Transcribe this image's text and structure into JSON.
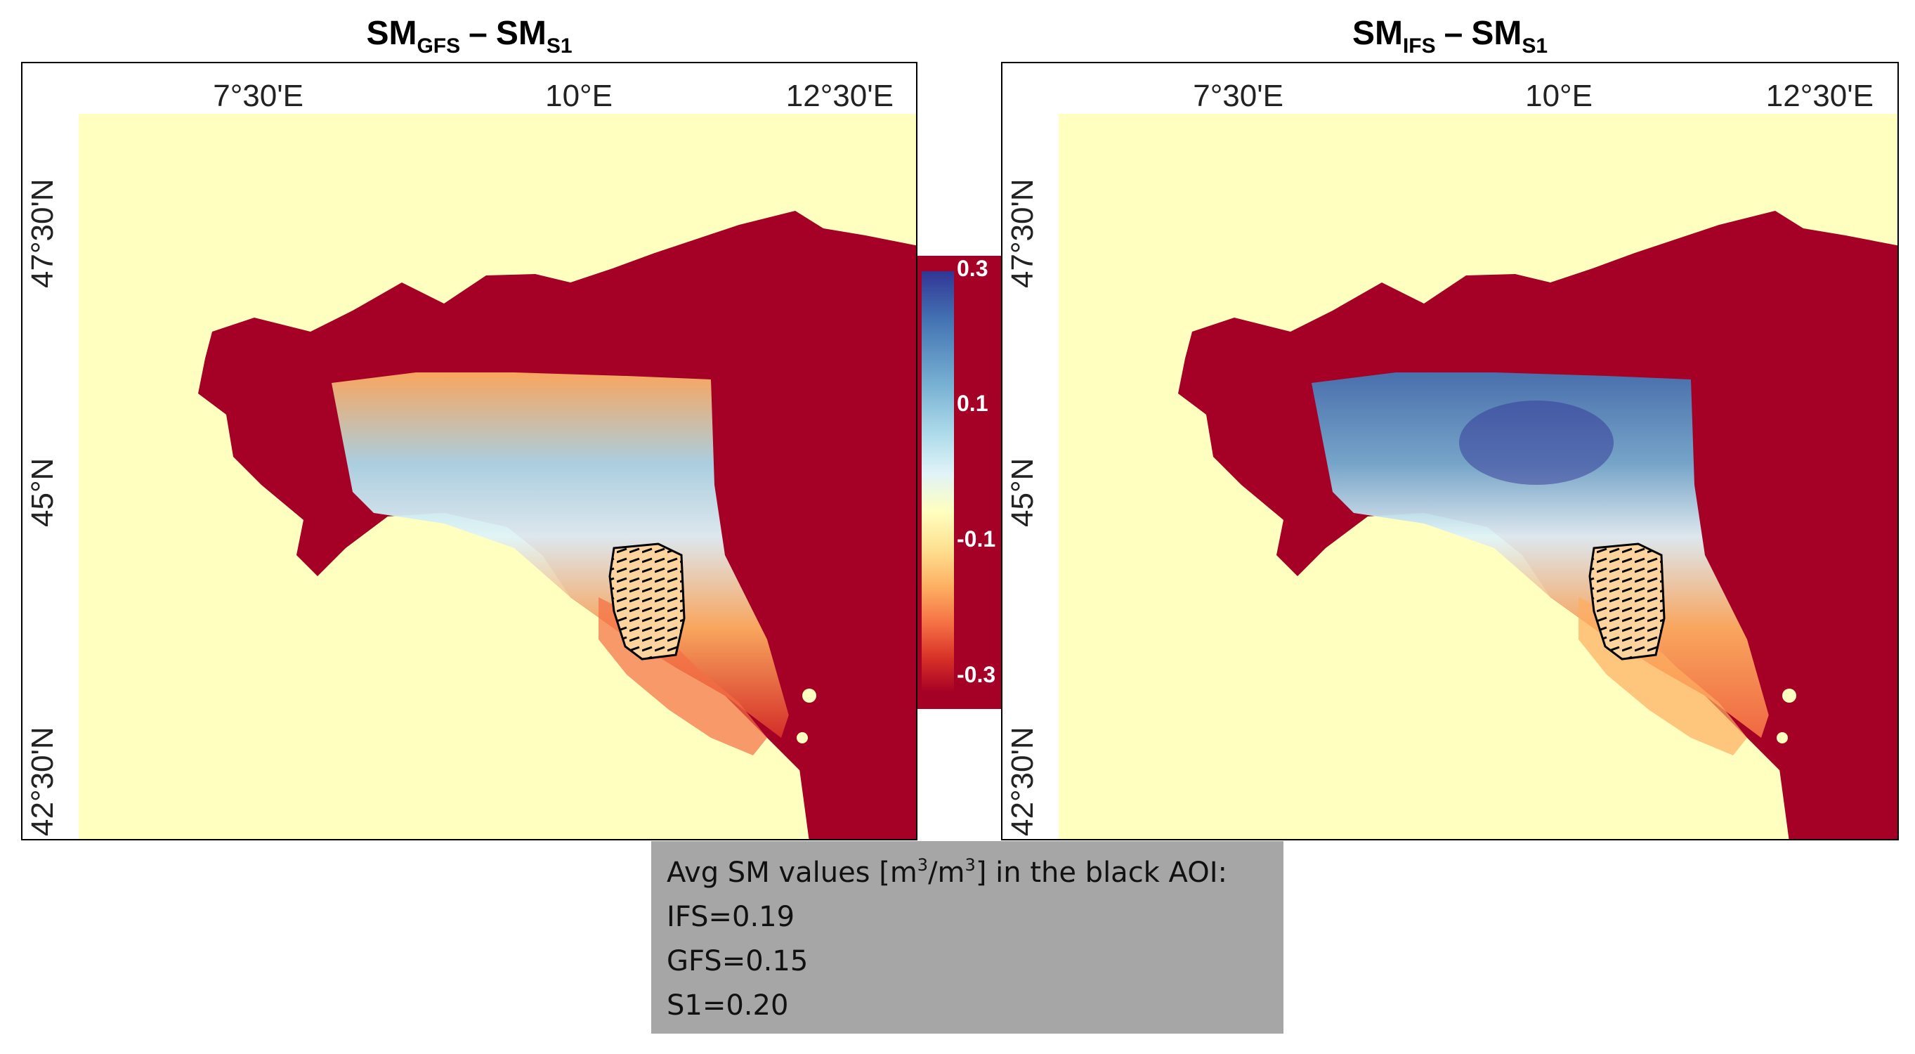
{
  "panels": [
    {
      "id": "gfs",
      "title_main": "SM",
      "title_sub": "GFS",
      "title_dash": "–",
      "title_main2": "SM",
      "title_sub2": "S1"
    },
    {
      "id": "ifs",
      "title_main": "SM",
      "title_sub": "IFS",
      "title_dash": "–",
      "title_main2": "SM",
      "title_sub2": "S1"
    }
  ],
  "axes": {
    "lon_labels": [
      "7°30'E",
      "10°E",
      "12°30'E"
    ],
    "lat_labels": [
      "47°30'N",
      "45°N",
      "42°30'N"
    ]
  },
  "colorbar": {
    "ticks": [
      "0.3",
      "0.1",
      "-0.1",
      "-0.3"
    ],
    "range": [
      -0.3,
      0.3
    ],
    "colors": [
      "#313695",
      "#74add1",
      "#e0f3f8",
      "#ffffbf",
      "#fdae61",
      "#d73027",
      "#a50026"
    ]
  },
  "map_colors": {
    "sea": "#ffffc0",
    "land_nodata": "#a50026",
    "aoi_outline": "#000000"
  },
  "info_box": {
    "line1_prefix": "Avg SM values [m",
    "line1_sup1": "3",
    "line1_mid": "/m",
    "line1_sup2": "3",
    "line1_suffix": "] in the black AOI:",
    "ifs": "IFS=0.19",
    "gfs": "GFS=0.15",
    "s1": "S1=0.20"
  }
}
